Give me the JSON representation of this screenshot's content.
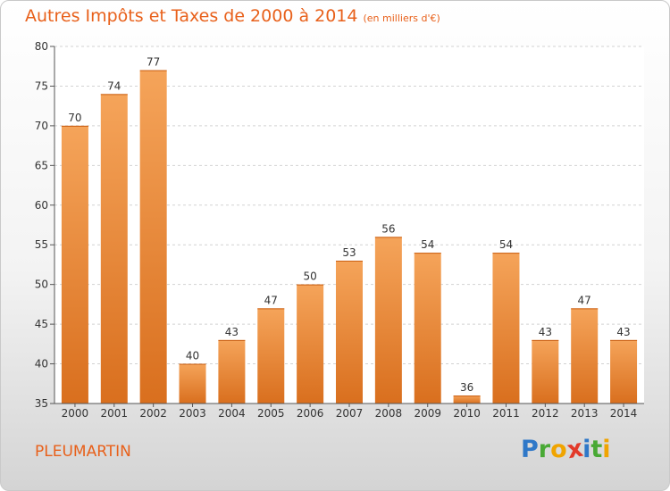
{
  "header": {
    "title": "Autres Impôts et Taxes de 2000 à 2014",
    "unit": "(en milliers d'€)"
  },
  "footer": {
    "commune": "PLEUMARTIN",
    "logo_letters": [
      {
        "ch": "P",
        "color": "#2f78c8"
      },
      {
        "ch": "r",
        "color": "#49a935"
      },
      {
        "ch": "o",
        "color": "#f0a400"
      },
      {
        "ch": "x",
        "color": "#e23a2a"
      },
      {
        "ch": "i",
        "color": "#2f78c8"
      },
      {
        "ch": "t",
        "color": "#49a935"
      },
      {
        "ch": "i",
        "color": "#f0a400"
      }
    ]
  },
  "colors": {
    "accent": "#e8601a",
    "bar_top": "#f5a45a",
    "bar_bottom": "#d96f1e",
    "grid": "#d2d2d2",
    "axis_text": "#333333"
  },
  "chart_data": {
    "type": "bar",
    "categories": [
      "2000",
      "2001",
      "2002",
      "2003",
      "2004",
      "2005",
      "2006",
      "2007",
      "2008",
      "2009",
      "2010",
      "2011",
      "2012",
      "2013",
      "2014"
    ],
    "values": [
      70,
      74,
      77,
      40,
      43,
      47,
      50,
      53,
      56,
      54,
      36,
      54,
      43,
      47,
      43
    ],
    "ylim": [
      35,
      80
    ],
    "yticks": [
      35,
      40,
      45,
      50,
      55,
      60,
      65,
      70,
      75,
      80
    ],
    "grid": true,
    "data_labels": true
  }
}
